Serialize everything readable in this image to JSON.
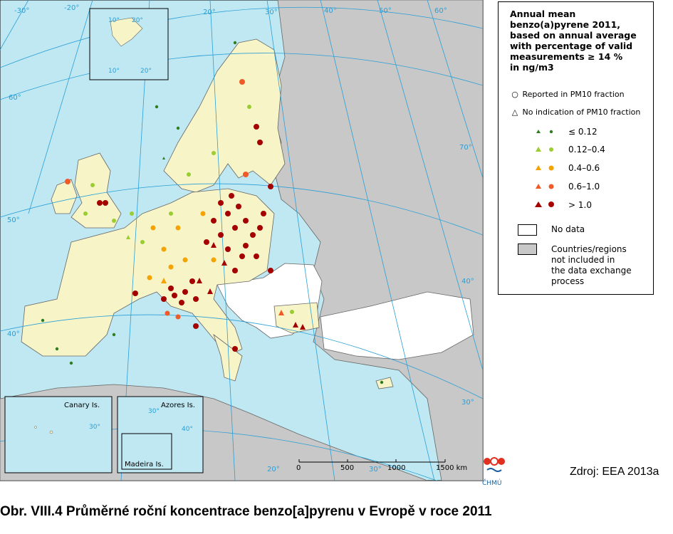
{
  "figure_caption": "Obr. VIII.4  Průměrné roční koncentrace benzo[a]pyrenu v Evropě v roce 2011",
  "source": "Zdroj: EEA 2013a",
  "logo_text": "ČHMÚ",
  "legend": {
    "title": "Annual mean\nbenzo(a)pyrene 2011,\nbased on annual average\nwith percentage of valid\nmeasurements ≥ 14 %\nin ng/m3",
    "reported_pm10": "Reported in PM10 fraction",
    "no_indication_pm10": "No indication of PM10 fraction",
    "classes": [
      {
        "label": "≤ 0.12",
        "color": "#2e7d1e"
      },
      {
        "label": "0.12–0.4",
        "color": "#9acd32"
      },
      {
        "label": "0.4–0.6",
        "color": "#f5a300"
      },
      {
        "label": "0.6–1.0",
        "color": "#f05a28"
      },
      {
        "label": "> 1.0",
        "color": "#a50000"
      }
    ],
    "no_data": "No data",
    "not_included": "Countries/regions\nnot included in\nthe data exchange\nprocess"
  },
  "insets": {
    "canary": "Canary Is.",
    "azores": "Azores Is.",
    "madeira": "Madeira Is.",
    "canary_grid": "30°",
    "azores_grid": "40°",
    "azores_grid2": "30°",
    "svalbard_grid": [
      "10°",
      "20°",
      "10°",
      "20°"
    ]
  },
  "graticule": {
    "meridians": [
      "-30°",
      "-20°",
      "-10°",
      "10°",
      "20°",
      "30°",
      "40°",
      "50°",
      "60°",
      "20°",
      "30°"
    ],
    "parallels": [
      "60°",
      "50°",
      "40°",
      "70°",
      "40°",
      "30°"
    ]
  },
  "scale_bar": {
    "ticks": [
      "0",
      "500",
      "1000",
      "1500 km"
    ]
  },
  "colors": {
    "sea": "#bfe8f2",
    "included_land": "#f7f5c8",
    "no_data_land": "#ffffff",
    "excluded_land": "#c8c8c8"
  }
}
